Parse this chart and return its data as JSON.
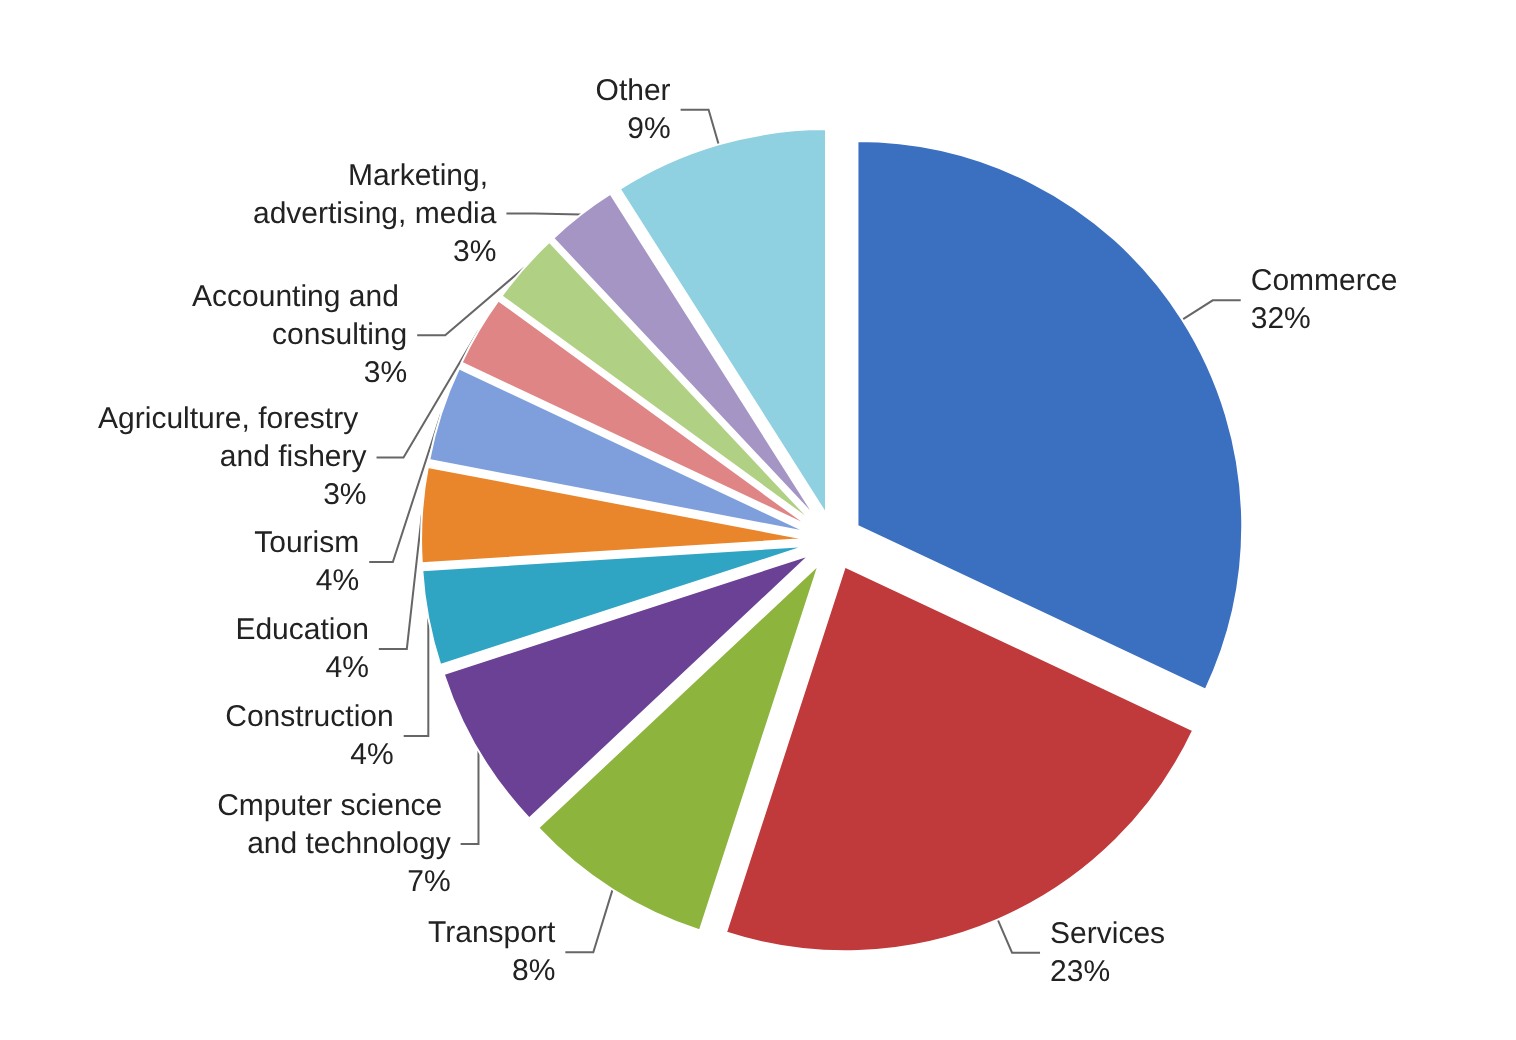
{
  "chart_data": {
    "type": "pie",
    "categories": [
      "Commerce",
      "Services",
      "Transport",
      "Cmputer science and technology",
      "Construction",
      "Education",
      "Tourism",
      "Agriculture, forestry and fishery",
      "Accounting and consulting",
      "Marketing, advertising, media",
      "Other"
    ],
    "values": [
      32,
      23,
      8,
      7,
      4,
      4,
      4,
      3,
      3,
      3,
      9
    ],
    "value_labels": [
      "32%",
      "23%",
      "8%",
      "7%",
      "4%",
      "4%",
      "4%",
      "3%",
      "3%",
      "3%",
      "9%"
    ],
    "colors": [
      "#3b6fc0",
      "#c0393b",
      "#8db43c",
      "#6b4196",
      "#2fa5c3",
      "#e9852a",
      "#7f9fdc",
      "#df8585",
      "#b0d183",
      "#a595c5",
      "#8fd0e1"
    ],
    "legend": false
  }
}
